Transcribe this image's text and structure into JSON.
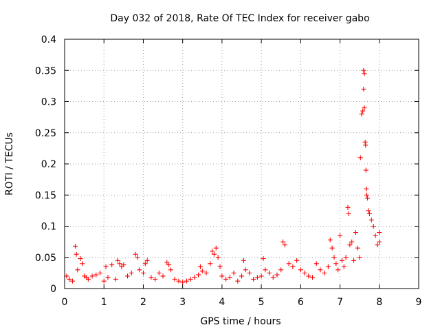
{
  "chart_data": {
    "type": "scatter",
    "title": "Day 032 of 2018, Rate Of TEC Index for receiver gabo",
    "xlabel": "GPS time / hours",
    "ylabel": "ROTI / TECUs",
    "xlim": [
      0,
      9
    ],
    "ylim": [
      0,
      0.4
    ],
    "grid": true,
    "marker": "plus",
    "series_color": "#ff0000",
    "x_ticks": [
      "0",
      "1",
      "2",
      "3",
      "4",
      "5",
      "6",
      "7",
      "8",
      "9"
    ],
    "y_ticks": [
      "0",
      "0.05",
      "0.1",
      "0.15",
      "0.2",
      "0.25",
      "0.3",
      "0.35",
      "0.4"
    ],
    "series": [
      {
        "name": "ROTI",
        "x": [
          0.05,
          0.12,
          0.2,
          0.27,
          0.3,
          0.33,
          0.4,
          0.45,
          0.5,
          0.55,
          0.6,
          0.7,
          0.8,
          0.9,
          1.0,
          1.05,
          1.1,
          1.2,
          1.3,
          1.35,
          1.4,
          1.45,
          1.5,
          1.6,
          1.7,
          1.8,
          1.85,
          1.9,
          2.0,
          2.05,
          2.1,
          2.2,
          2.3,
          2.4,
          2.5,
          2.6,
          2.65,
          2.7,
          2.8,
          2.9,
          3.0,
          3.1,
          3.2,
          3.3,
          3.4,
          3.45,
          3.5,
          3.6,
          3.7,
          3.75,
          3.8,
          3.85,
          3.9,
          3.95,
          4.0,
          4.1,
          4.2,
          4.3,
          4.4,
          4.5,
          4.55,
          4.6,
          4.7,
          4.8,
          4.9,
          5.0,
          5.05,
          5.1,
          5.2,
          5.3,
          5.4,
          5.5,
          5.55,
          5.6,
          5.7,
          5.8,
          5.9,
          6.0,
          6.1,
          6.2,
          6.3,
          6.4,
          6.5,
          6.6,
          6.7,
          6.75,
          6.8,
          6.85,
          6.9,
          6.95,
          7.0,
          7.05,
          7.1,
          7.15,
          7.2,
          7.22,
          7.25,
          7.3,
          7.35,
          7.4,
          7.45,
          7.5,
          7.52,
          7.55,
          7.58,
          7.6,
          7.6,
          7.62,
          7.62,
          7.64,
          7.65,
          7.66,
          7.67,
          7.68,
          7.7,
          7.72,
          7.75,
          7.8,
          7.85,
          7.9,
          7.95,
          8.0,
          8.0
        ],
        "y": [
          0.02,
          0.015,
          0.012,
          0.068,
          0.055,
          0.03,
          0.048,
          0.04,
          0.02,
          0.018,
          0.015,
          0.02,
          0.022,
          0.025,
          0.012,
          0.035,
          0.018,
          0.038,
          0.015,
          0.045,
          0.04,
          0.035,
          0.038,
          0.02,
          0.025,
          0.055,
          0.05,
          0.03,
          0.025,
          0.04,
          0.045,
          0.018,
          0.015,
          0.025,
          0.02,
          0.042,
          0.038,
          0.03,
          0.015,
          0.012,
          0.01,
          0.012,
          0.015,
          0.018,
          0.022,
          0.035,
          0.028,
          0.025,
          0.04,
          0.06,
          0.055,
          0.065,
          0.05,
          0.035,
          0.02,
          0.015,
          0.018,
          0.025,
          0.012,
          0.02,
          0.045,
          0.03,
          0.025,
          0.015,
          0.018,
          0.02,
          0.048,
          0.03,
          0.025,
          0.018,
          0.022,
          0.03,
          0.075,
          0.07,
          0.04,
          0.035,
          0.045,
          0.03,
          0.025,
          0.02,
          0.018,
          0.04,
          0.03,
          0.025,
          0.035,
          0.078,
          0.065,
          0.05,
          0.04,
          0.03,
          0.085,
          0.045,
          0.035,
          0.05,
          0.13,
          0.12,
          0.07,
          0.075,
          0.045,
          0.09,
          0.065,
          0.05,
          0.21,
          0.28,
          0.285,
          0.32,
          0.35,
          0.345,
          0.29,
          0.235,
          0.23,
          0.19,
          0.16,
          0.15,
          0.145,
          0.125,
          0.12,
          0.11,
          0.1,
          0.085,
          0.07,
          0.075,
          0.09
        ]
      }
    ]
  }
}
